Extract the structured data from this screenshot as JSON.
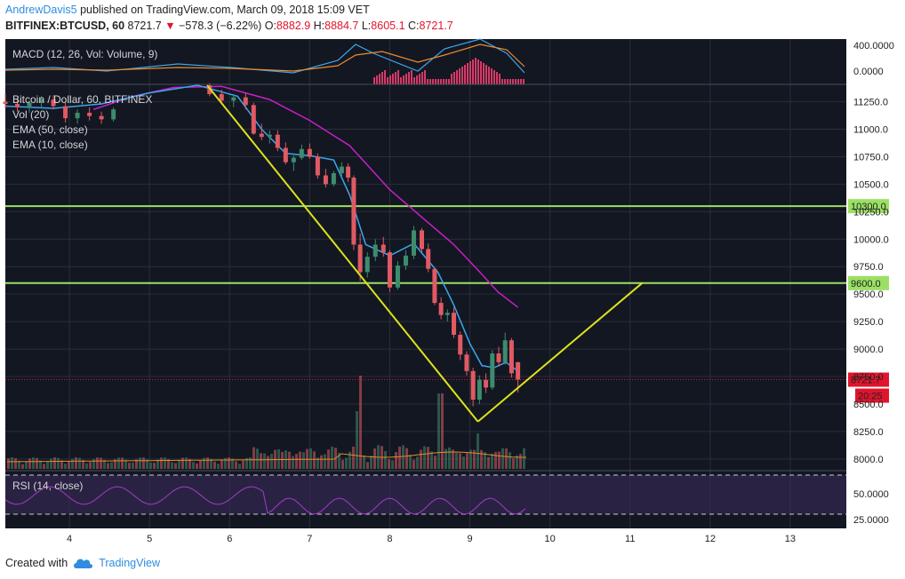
{
  "header": {
    "user": "AndrewDavis5",
    "published": "published on TradingView.com, March 09, 2018 15:09 VET",
    "symbol": "BITFINEX:BTCUSD, 60",
    "last": "8721.7",
    "change": "−578.3 (−6.22%)",
    "o_label": "O:",
    "o": "8882.9",
    "h_label": "H:",
    "h": "8884.7",
    "l_label": "L:",
    "l": "8605.1",
    "c_label": "C:",
    "c": "8721.7"
  },
  "panes": {
    "macd_label": "MACD (12, 26, Vol: Volume, 9)",
    "main_title": "Bitcoin / Dollar, 60, BITFINEX",
    "vol_label": "Vol (20)",
    "ema50_label": "EMA (50, close)",
    "ema10_label": "EMA (10, close)",
    "rsi_label": "RSI (14, close)"
  },
  "price_badges": {
    "last": "8721.7",
    "countdown": "20:25",
    "h1": "10300.0",
    "h2": "9600.0"
  },
  "footer": {
    "created": "Created with",
    "brand": "TradingView"
  },
  "colors": {
    "bg": "#131722",
    "up": "#3c8c6e",
    "down": "#e05a63",
    "ema50": "#c81fc8",
    "ema10": "#3aa6ee",
    "trend": "#dde21c",
    "hline": "#9be064",
    "rsi": "#a33bc9"
  },
  "chart_data": {
    "type": "candlestick",
    "title": "Bitcoin / Dollar, 60, BITFINEX",
    "x_ticks": [
      "4",
      "5",
      "6",
      "7",
      "8",
      "9",
      "10",
      "11",
      "12",
      "13"
    ],
    "x_range": [
      3.2,
      13.7
    ],
    "price_axis_ticks": [
      "11250.0",
      "11000.0",
      "10750.0",
      "10500.0",
      "10250.0",
      "10000.0",
      "9750.0",
      "9500.0",
      "9250.0",
      "9000.0",
      "8750.0",
      "8500.0",
      "8250.0",
      "8000.0"
    ],
    "ylim": [
      7910,
      11400
    ],
    "macd_axis_ticks": [
      "400.0000",
      "0.0000"
    ],
    "rsi_axis_ticks": [
      "50.0000",
      "25.0000"
    ],
    "horizontal_lines": [
      10300,
      9600
    ],
    "last_price": 8721.7,
    "trendlines": [
      {
        "from": [
          5.72,
          11400
        ],
        "to": [
          9.1,
          8340
        ]
      },
      {
        "from": [
          9.1,
          8340
        ],
        "to": [
          11.15,
          9600
        ]
      }
    ],
    "ema50": [
      [
        4.3,
        11180
      ],
      [
        4.8,
        11300
      ],
      [
        5.3,
        11380
      ],
      [
        5.9,
        11390
      ],
      [
        6.5,
        11270
      ],
      [
        7.0,
        11080
      ],
      [
        7.5,
        10850
      ],
      [
        8.0,
        10450
      ],
      [
        8.4,
        10200
      ],
      [
        8.8,
        9950
      ],
      [
        9.1,
        9720
      ],
      [
        9.35,
        9520
      ],
      [
        9.6,
        9380
      ]
    ],
    "ema10": [
      [
        3.2,
        11210
      ],
      [
        3.8,
        11190
      ],
      [
        4.4,
        11230
      ],
      [
        5.0,
        11330
      ],
      [
        5.6,
        11400
      ],
      [
        6.1,
        11300
      ],
      [
        6.4,
        11000
      ],
      [
        6.7,
        10780
      ],
      [
        7.0,
        10760
      ],
      [
        7.3,
        10720
      ],
      [
        7.5,
        10400
      ],
      [
        7.7,
        9950
      ],
      [
        8.0,
        9850
      ],
      [
        8.3,
        9960
      ],
      [
        8.6,
        9700
      ],
      [
        8.8,
        9400
      ],
      [
        9.0,
        9050
      ],
      [
        9.15,
        8850
      ],
      [
        9.3,
        8830
      ],
      [
        9.45,
        8880
      ],
      [
        9.6,
        8800
      ]
    ],
    "candles": [
      [
        3.2,
        11250,
        11320,
        11190,
        11230
      ],
      [
        3.35,
        11230,
        11280,
        11160,
        11200
      ],
      [
        3.5,
        11200,
        11260,
        11150,
        11240
      ],
      [
        3.65,
        11240,
        11300,
        11200,
        11270
      ],
      [
        3.8,
        11270,
        11310,
        11180,
        11210
      ],
      [
        3.95,
        11210,
        11240,
        11060,
        11100
      ],
      [
        4.1,
        11100,
        11180,
        11050,
        11150
      ],
      [
        4.25,
        11150,
        11200,
        11080,
        11120
      ],
      [
        4.4,
        11120,
        11160,
        11050,
        11090
      ],
      [
        4.55,
        11090,
        11200,
        11070,
        11180
      ],
      [
        5.75,
        11400,
        11420,
        11300,
        11320
      ],
      [
        5.9,
        11320,
        11360,
        11230,
        11260
      ],
      [
        6.05,
        11260,
        11320,
        11200,
        11290
      ],
      [
        6.2,
        11290,
        11330,
        11180,
        11220
      ],
      [
        6.3,
        11220,
        11240,
        10950,
        10960
      ],
      [
        6.4,
        10960,
        11050,
        10900,
        10930
      ],
      [
        6.5,
        10930,
        10990,
        10870,
        10950
      ],
      [
        6.6,
        10950,
        10990,
        10800,
        10830
      ],
      [
        6.7,
        10830,
        10880,
        10680,
        10700
      ],
      [
        6.8,
        10700,
        10760,
        10620,
        10740
      ],
      [
        6.9,
        10740,
        10860,
        10720,
        10820
      ],
      [
        7.0,
        10820,
        10870,
        10730,
        10750
      ],
      [
        7.1,
        10750,
        10780,
        10550,
        10580
      ],
      [
        7.2,
        10580,
        10640,
        10470,
        10500
      ],
      [
        7.3,
        10500,
        10620,
        10480,
        10600
      ],
      [
        7.4,
        10600,
        10700,
        10570,
        10660
      ],
      [
        7.48,
        10660,
        10690,
        10520,
        10560
      ],
      [
        7.55,
        10560,
        10580,
        9900,
        9950
      ],
      [
        7.63,
        9950,
        10050,
        9620,
        9700
      ],
      [
        7.72,
        9700,
        9880,
        9650,
        9840
      ],
      [
        7.82,
        9840,
        10000,
        9800,
        9950
      ],
      [
        7.92,
        9950,
        10020,
        9840,
        9880
      ],
      [
        8.0,
        9880,
        9900,
        9520,
        9560
      ],
      [
        8.1,
        9560,
        9800,
        9540,
        9760
      ],
      [
        8.2,
        9760,
        9900,
        9720,
        9850
      ],
      [
        8.3,
        9850,
        10120,
        9820,
        10080
      ],
      [
        8.4,
        10080,
        10100,
        9880,
        9910
      ],
      [
        8.48,
        9910,
        9960,
        9700,
        9730
      ],
      [
        8.56,
        9730,
        9740,
        9400,
        9420
      ],
      [
        8.64,
        9420,
        9470,
        9270,
        9310
      ],
      [
        8.72,
        9310,
        9360,
        9250,
        9330
      ],
      [
        8.8,
        9330,
        9380,
        9100,
        9130
      ],
      [
        8.88,
        9130,
        9160,
        8900,
        8950
      ],
      [
        8.96,
        8950,
        8980,
        8760,
        8800
      ],
      [
        9.04,
        8800,
        8830,
        8480,
        8540
      ],
      [
        9.12,
        8540,
        8760,
        8500,
        8720
      ],
      [
        9.2,
        8720,
        8780,
        8600,
        8650
      ],
      [
        9.28,
        8650,
        8990,
        8630,
        8960
      ],
      [
        9.36,
        8960,
        9020,
        8840,
        8880
      ],
      [
        9.44,
        8880,
        9150,
        8860,
        9080
      ],
      [
        9.52,
        9080,
        9100,
        8740,
        8780
      ],
      [
        9.6,
        8880,
        8885,
        8605,
        8722
      ]
    ]
  }
}
